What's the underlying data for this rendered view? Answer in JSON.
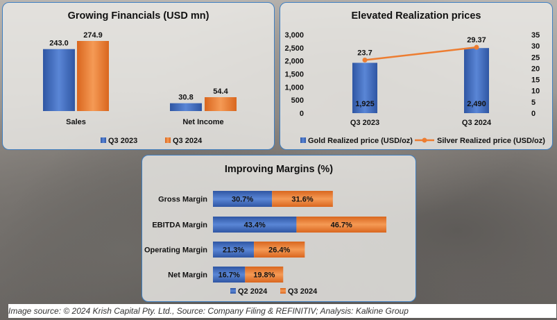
{
  "chart_data": [
    {
      "type": "bar",
      "title": "Growing Financials (USD mn)",
      "categories": [
        "Sales",
        "Net Income"
      ],
      "series": [
        {
          "name": "Q3 2023",
          "values": [
            243.0,
            30.8
          ],
          "labels": [
            "243.0",
            "30.8"
          ],
          "color": "#3e67b3"
        },
        {
          "name": "Q3 2024",
          "values": [
            274.9,
            54.4
          ],
          "labels": [
            "274.9",
            "54.4"
          ],
          "color": "#e8772e"
        }
      ],
      "ylim": [
        0,
        290
      ],
      "legend": "bottom",
      "grid": false
    },
    {
      "type": "bar",
      "title": "Elevated Realization prices",
      "categories": [
        "Q3 2023",
        "Q3 2024"
      ],
      "series": [
        {
          "name": "Gold Realized price (USD/oz)",
          "kind": "bar",
          "axis": "left",
          "values": [
            1925,
            2490
          ],
          "labels": [
            "1,925",
            "2,490"
          ],
          "color": "#3e67b3"
        },
        {
          "name": "Silver Realized price (USD/oz)",
          "kind": "line",
          "axis": "right",
          "values": [
            23.7,
            29.37
          ],
          "labels": [
            "23.7",
            "29.37"
          ],
          "color": "#ed7d31"
        }
      ],
      "y_left": {
        "range": [
          0,
          3000
        ],
        "ticks": [
          "0",
          "500",
          "1,000",
          "1,500",
          "2,000",
          "2,500",
          "3,000"
        ]
      },
      "y_right": {
        "range": [
          0,
          35
        ],
        "ticks": [
          "0",
          "5",
          "10",
          "15",
          "20",
          "25",
          "30",
          "35"
        ]
      },
      "legend": "bottom",
      "grid": false
    },
    {
      "type": "bar",
      "orientation": "horizontal",
      "stacked": true,
      "title": "Improving Margins (%)",
      "categories": [
        "Gross Margin",
        "EBITDA Margin",
        "Operating Margin",
        "Net Margin"
      ],
      "series": [
        {
          "name": "Q2 2024",
          "values": [
            30.7,
            43.4,
            21.3,
            16.7
          ],
          "labels": [
            "30.7%",
            "43.4%",
            "21.3%",
            "16.7%"
          ],
          "color": "#3e67b3"
        },
        {
          "name": "Q3 2024",
          "values": [
            31.6,
            46.7,
            26.4,
            19.8
          ],
          "labels": [
            "31.6%",
            "46.7%",
            "26.4%",
            "19.8%"
          ],
          "color": "#e8772e"
        }
      ],
      "legend": "bottom",
      "grid": false
    }
  ],
  "source_note": "Image source: © 2024 Krish Capital Pty. Ltd., Source: Company Filing & REFINITIV; Analysis: Kalkine Group"
}
